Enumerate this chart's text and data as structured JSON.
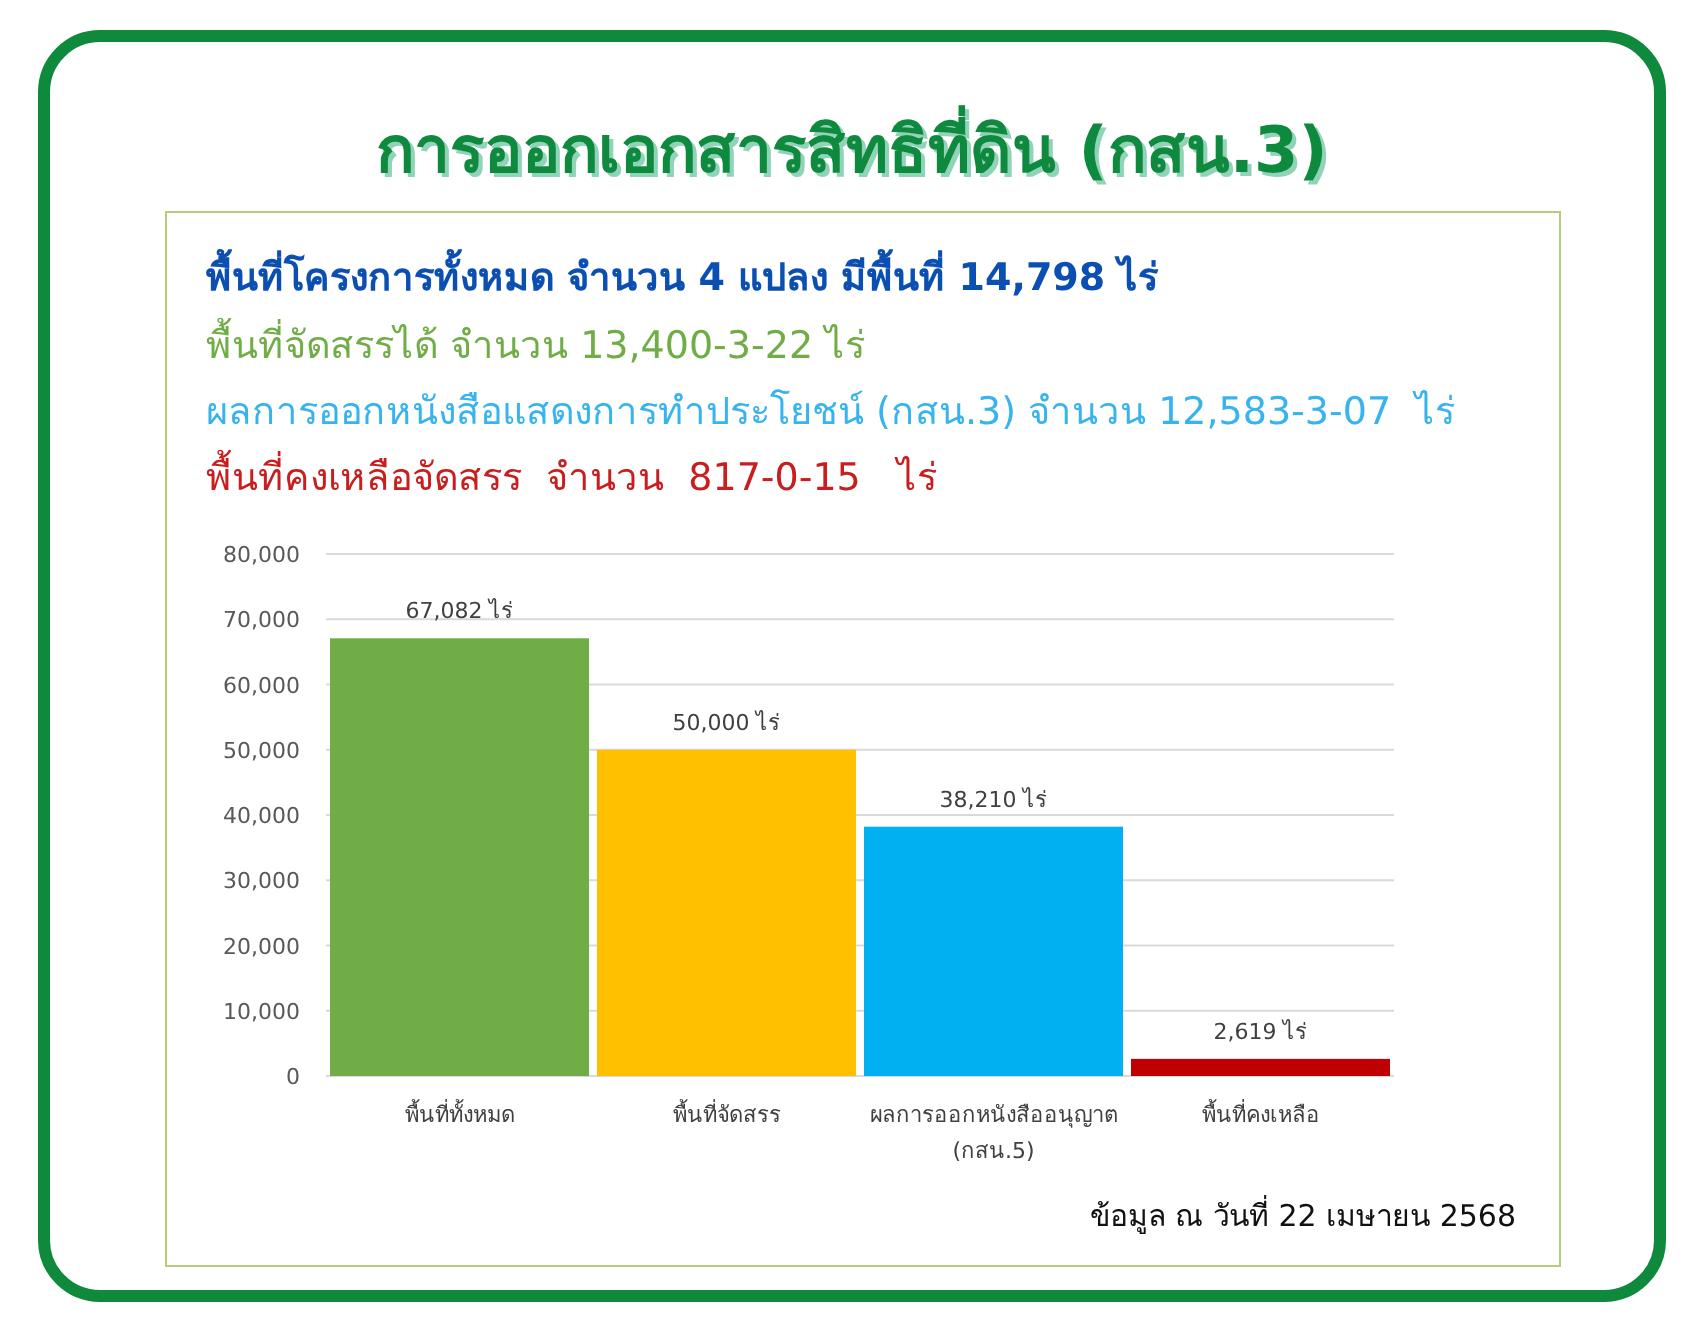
{
  "chart_data": {
    "type": "bar",
    "title": "การออกเอกสารสิทธิที่ดิน (กสน.3)",
    "subtitle": "พื้นที่โครงการทั้งหมด จำนวน 4 แปลง มีพื้นที่ 14,798 ไร่",
    "annotations": [
      "พื้นที่จัดสรรได้ จำนวน 13,400-3-22 ไร่",
      "ผลการออกหนังสือแสดงการทำประโยชน์ (กสน.3) จำนวน 12,583-3-07  ไร่",
      "พื้นที่คงเหลือจัดสรร  จำนวน  817-0-15   ไร่",
      "ข้อมูล ณ วันที่ 22 เมษายน 2568"
    ],
    "categories": [
      "พื้นที่ทั้งหมด",
      "พื้นที่จัดสรร",
      "ผลการออกหนังสืออนุญาต (กสน.5)",
      "พื้นที่คงเหลือ"
    ],
    "values": [
      67082,
      50000,
      38210,
      2619
    ],
    "colors": [
      "#70ad47",
      "#ffc000",
      "#00b0f0",
      "#c00000"
    ],
    "value_labels": [
      "67,082 ไร่",
      "50,000 ไร่",
      "38,210 ไร่",
      "2,619 ไร่"
    ],
    "ylim": [
      0,
      80000
    ],
    "yticks": [
      0,
      {
        "value": 10000,
        "label": "10,000"
      },
      {
        "value": 20000,
        "label": "20,000"
      },
      {
        "value": 30000,
        "label": "30,000"
      },
      {
        "value": 40000,
        "label": "40,000"
      },
      {
        "value": 50000,
        "label": "50,000"
      },
      {
        "value": 60000,
        "label": "60,000"
      },
      {
        "value": 70000,
        "label": "70,000"
      },
      {
        "value": 80000,
        "label": "80,000"
      }
    ],
    "grid": "y",
    "legend": false
  }
}
